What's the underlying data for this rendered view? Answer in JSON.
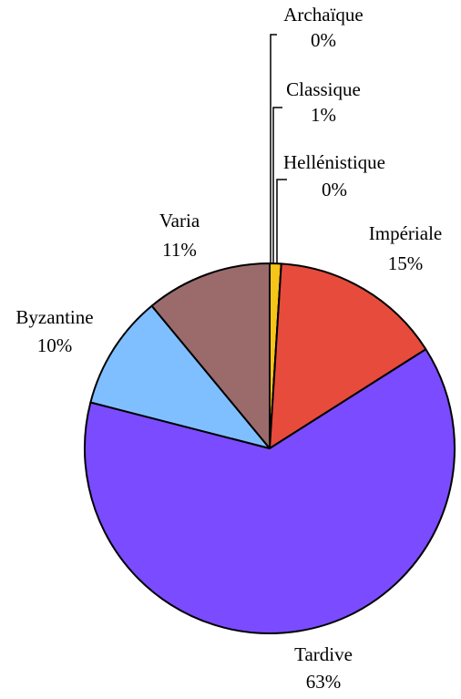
{
  "chart_data": {
    "type": "pie",
    "categories": [
      "Archaïque",
      "Classique",
      "Hellénistique",
      "Impériale",
      "Tardive",
      "Byzantine",
      "Varia"
    ],
    "values": [
      0,
      1,
      0,
      15,
      63,
      10,
      11
    ],
    "value_labels": [
      "0%",
      "1%",
      "0%",
      "15%",
      "63%",
      "10%",
      "11%"
    ],
    "colors": [
      "#8fbf3f",
      "#f5c518",
      "#3fa34d",
      "#e64b3c",
      "#7b4bff",
      "#7fbfff",
      "#9b6b6b"
    ]
  }
}
